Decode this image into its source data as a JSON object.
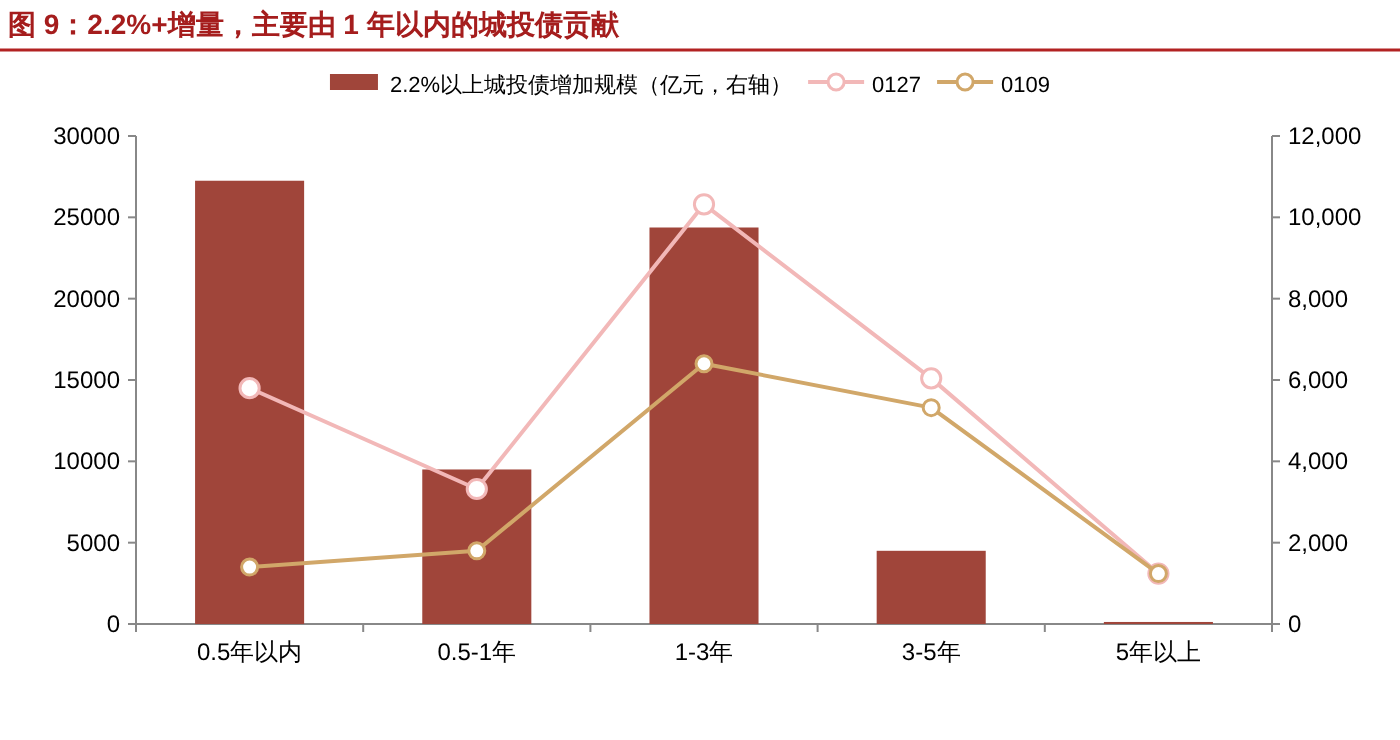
{
  "chart_data": {
    "type": "bar",
    "title": "图 9：2.2%+增量，主要由 1 年以内的城投债贡献",
    "categories": [
      "0.5年以内",
      "0.5-1年",
      "1-3年",
      "3-5年",
      "5年以上"
    ],
    "series": [
      {
        "name": "2.2%以上城投债增加规模（亿元，右轴）",
        "axis": "y2",
        "color": "#a0453a",
        "values": [
          10900,
          3800,
          9750,
          1800,
          50
        ]
      },
      {
        "name": "0127",
        "type": "line",
        "color": "#f2b8b8",
        "marker": "circle",
        "values": [
          14500,
          8300,
          25800,
          15100,
          3100
        ]
      },
      {
        "name": "0109",
        "type": "line",
        "color": "#d1a769",
        "marker": "circle",
        "values": [
          3500,
          4500,
          16000,
          13300,
          3100
        ]
      }
    ],
    "ylim": [
      0,
      30000
    ],
    "yticks": [
      0,
      5000,
      10000,
      15000,
      20000,
      25000,
      30000
    ],
    "y2lim": [
      0,
      12000
    ],
    "y2ticks": [
      0,
      {
        "value": 2000,
        "label": "2,000"
      },
      {
        "value": 4000,
        "label": "4,000"
      },
      {
        "value": 6000,
        "label": "6,000"
      },
      {
        "value": 8000,
        "label": "8,000"
      },
      {
        "value": 10000,
        "label": "10,000"
      },
      {
        "value": 12000,
        "label": "12,000"
      }
    ],
    "grid": false,
    "legend": "top"
  }
}
